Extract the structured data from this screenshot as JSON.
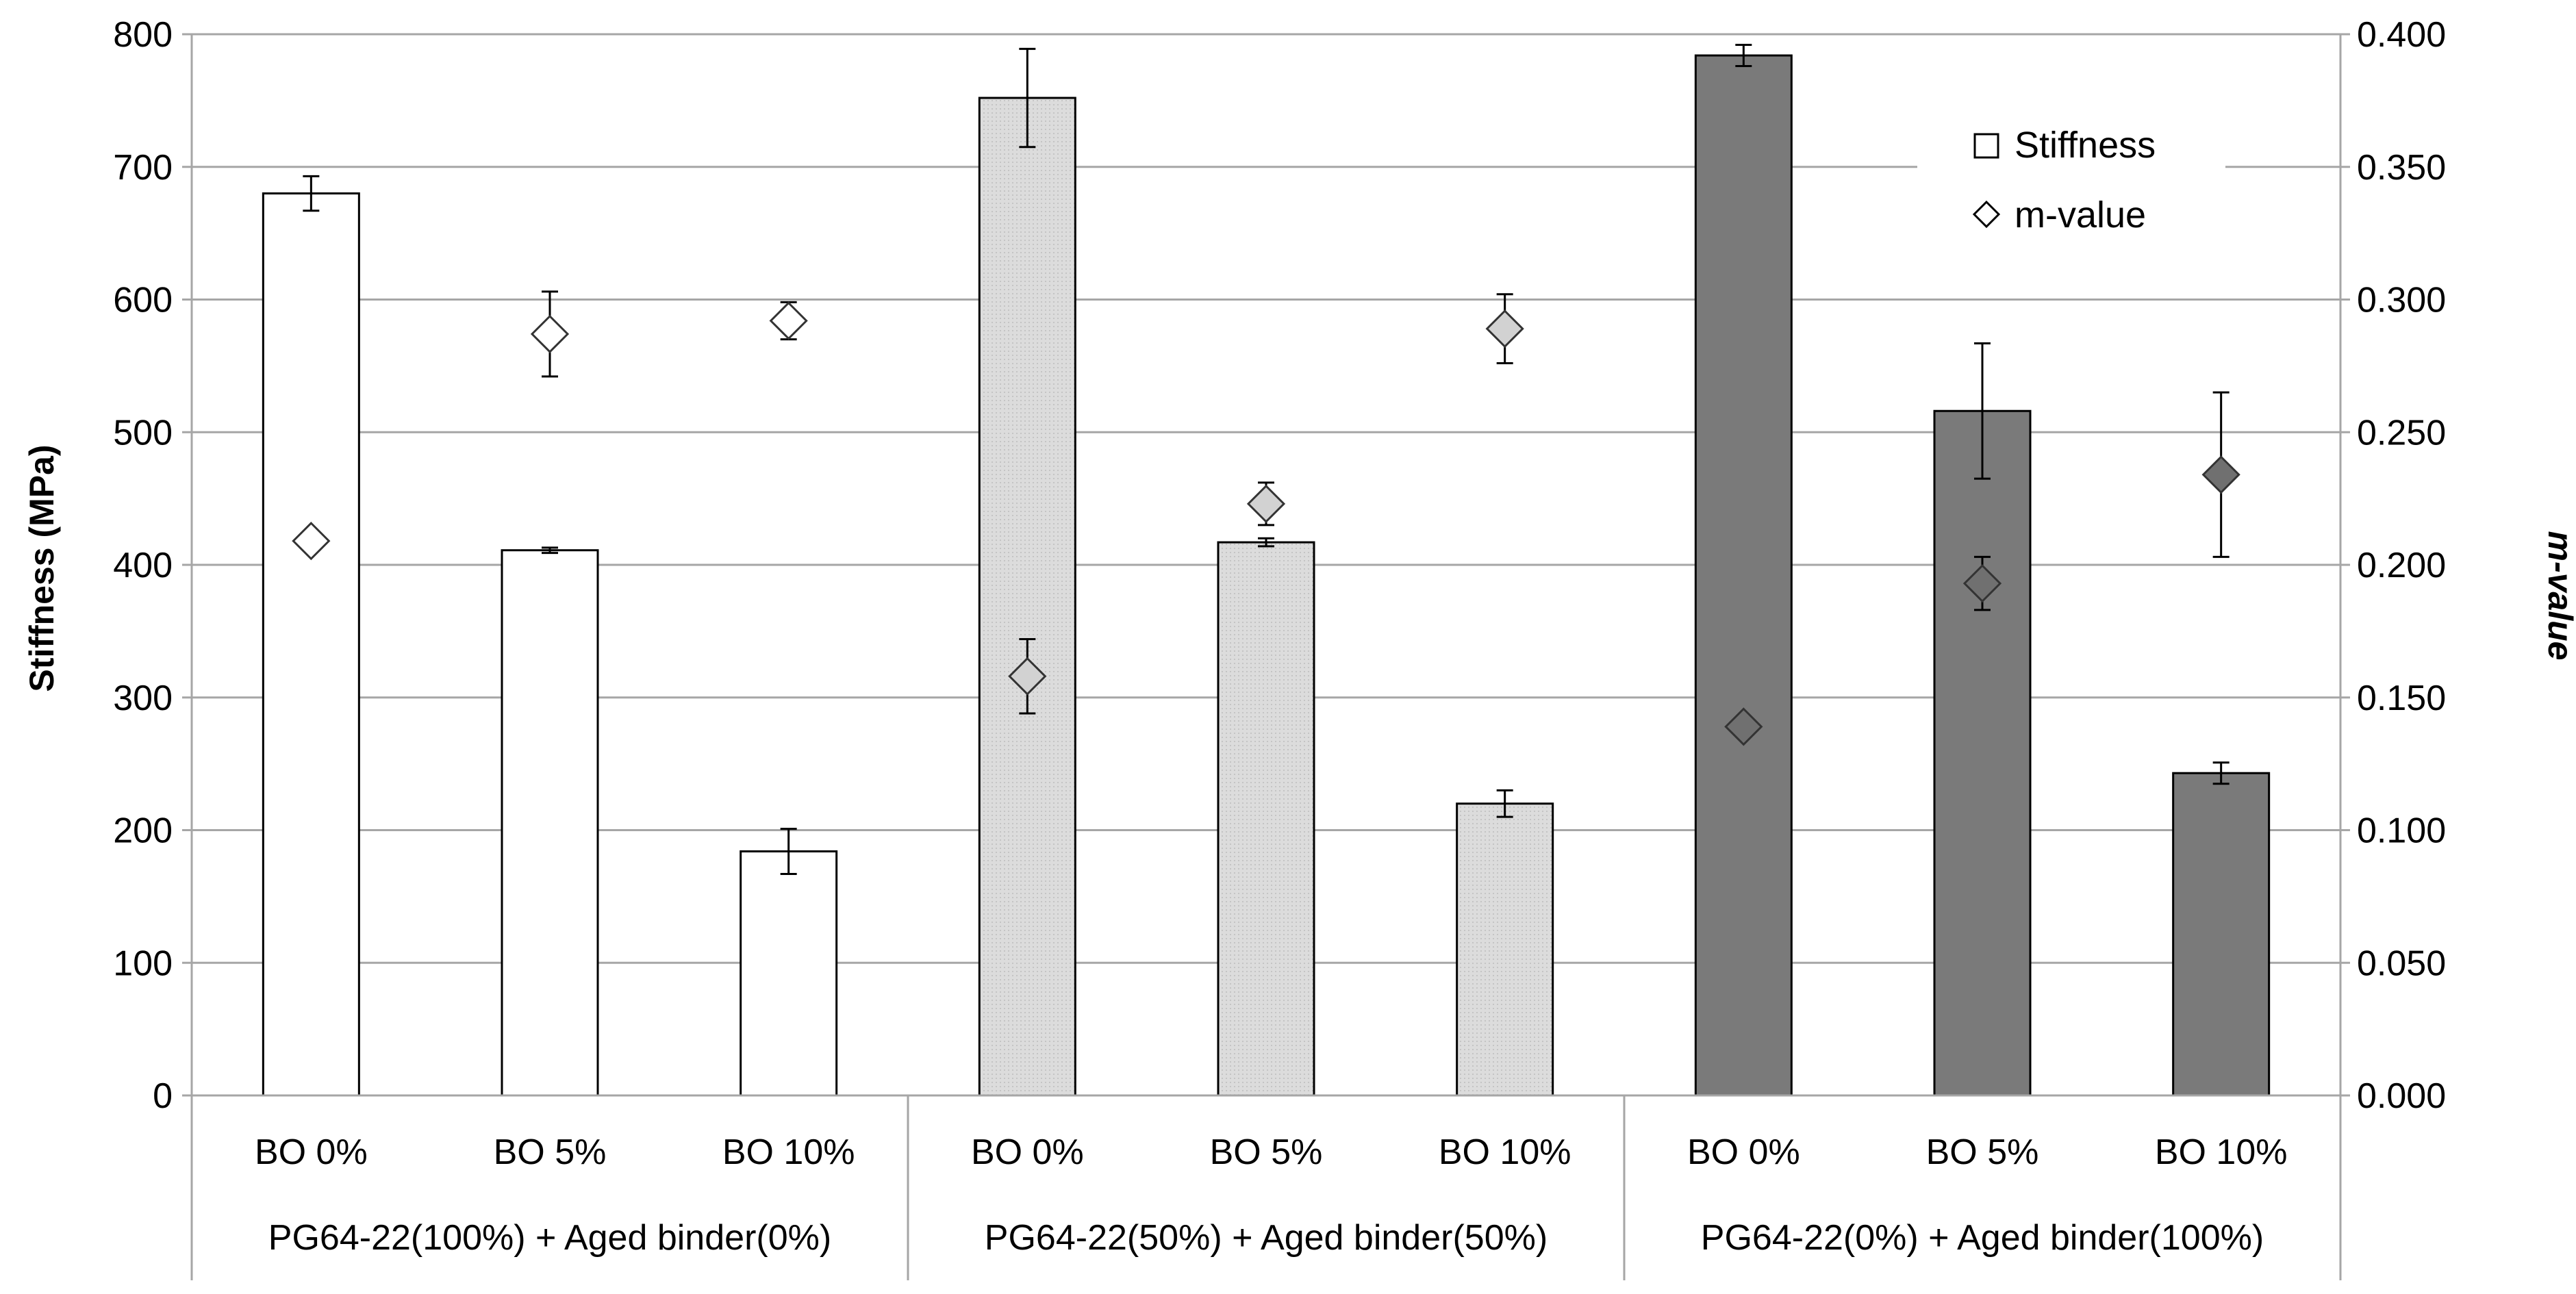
{
  "colors": {
    "group_fills": [
      "#ffffff",
      "#dcdcdc",
      "#7a7a7a"
    ],
    "marker_fills": [
      "#ffffff",
      "#d2d2d2",
      "#707070"
    ],
    "stroke": "#000000",
    "grid": "#a6a6a6"
  },
  "chart_data": {
    "type": "bar",
    "categories": [
      "BO 0%",
      "BO 5%",
      "BO 10%",
      "BO 0%",
      "BO 5%",
      "BO 10%",
      "BO 0%",
      "BO 5%",
      "BO 10%"
    ],
    "groups": [
      "PG64-22(100%) + Aged binder(0%)",
      "PG64-22(50%) + Aged binder(50%)",
      "PG64-22(0%) + Aged binder(100%)"
    ],
    "series": [
      {
        "name": "Stiffness",
        "axis": "left",
        "mark": "bar",
        "values": [
          680,
          411,
          184,
          752,
          417,
          220,
          784,
          516,
          243
        ],
        "error": [
          13,
          2,
          17,
          37,
          3,
          10,
          8,
          51,
          8
        ]
      },
      {
        "name": "m-value",
        "axis": "right",
        "mark": "diamond",
        "values": [
          0.209,
          0.287,
          0.292,
          0.158,
          0.223,
          0.289,
          0.139,
          0.193,
          0.234
        ],
        "error": [
          0.0,
          0.016,
          0.007,
          0.014,
          0.008,
          0.013,
          0.0,
          0.01,
          0.031
        ]
      }
    ],
    "ylabel": "Stiffness (MPa)",
    "y2label": "m-value",
    "ylim": [
      0,
      800
    ],
    "yticks": [
      "0",
      "100",
      "200",
      "300",
      "400",
      "500",
      "600",
      "700",
      "800"
    ],
    "y2lim": [
      0,
      0.4
    ],
    "y2ticks": [
      "0.000",
      "0.050",
      "0.100",
      "0.150",
      "0.200",
      "0.250",
      "0.300",
      "0.350",
      "0.400"
    ],
    "legend": [
      "Stiffness",
      "m-value"
    ],
    "legend_position": "top-right",
    "grid": true
  }
}
